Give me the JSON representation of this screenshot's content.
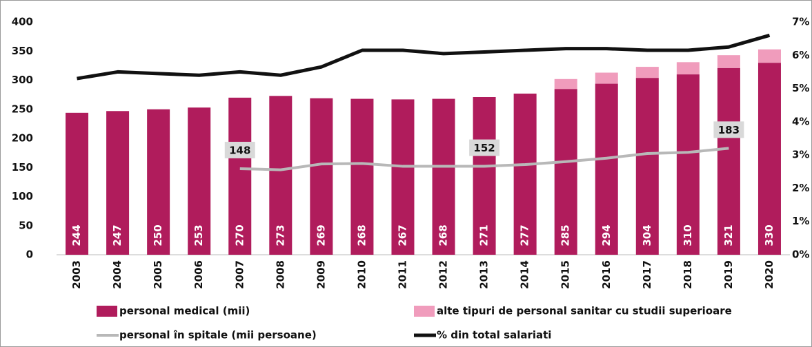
{
  "chart_data": {
    "type": "bar",
    "categories": [
      "2003",
      "2004",
      "2005",
      "2006",
      "2007",
      "2008",
      "2009",
      "2010",
      "2011",
      "2012",
      "2013",
      "2014",
      "2015",
      "2016",
      "2017",
      "2018",
      "2019",
      "2020"
    ],
    "series": [
      {
        "name": "personal medical (mii)",
        "color": "#b01c5c",
        "kind": "bar",
        "values": [
          244,
          247,
          250,
          253,
          270,
          273,
          269,
          268,
          267,
          268,
          271,
          277,
          285,
          294,
          304,
          310,
          321,
          330
        ]
      },
      {
        "name": "alte tipuri de personal sanitar cu studii superioare",
        "color": "#f09cbc",
        "kind": "bar",
        "values": [
          null,
          null,
          null,
          null,
          null,
          null,
          null,
          null,
          null,
          null,
          null,
          null,
          17,
          19,
          19,
          21,
          22,
          23
        ]
      },
      {
        "name": "personal în spitale (mii persoane)",
        "color": "#b8b8b8",
        "kind": "line",
        "values": [
          null,
          null,
          null,
          null,
          148,
          146,
          156,
          157,
          152,
          152,
          152,
          155,
          160,
          166,
          174,
          176,
          183,
          null
        ],
        "value_labels": [
          null,
          null,
          null,
          null,
          "148",
          null,
          null,
          null,
          null,
          null,
          "152",
          null,
          null,
          null,
          null,
          null,
          "183",
          null
        ]
      },
      {
        "name": "% din total salariati",
        "color": "#111111",
        "kind": "line",
        "axis": "y2",
        "values": [
          5.3,
          5.5,
          5.45,
          5.4,
          5.5,
          5.4,
          5.65,
          6.15,
          6.15,
          6.05,
          6.1,
          6.15,
          6.2,
          6.2,
          6.15,
          6.15,
          6.25,
          6.6
        ]
      }
    ],
    "ylim": [
      0,
      400
    ],
    "yticks": [
      0,
      50,
      100,
      150,
      200,
      250,
      300,
      350,
      400
    ],
    "y2lim": [
      0,
      7
    ],
    "y2ticks": [
      {
        "value": 0,
        "label": "0%"
      },
      {
        "value": 1,
        "label": "1%"
      },
      {
        "value": 2,
        "label": "2%"
      },
      {
        "value": 3,
        "label": "3%"
      },
      {
        "value": 4,
        "label": "4%"
      },
      {
        "value": 5,
        "label": "5%"
      },
      {
        "value": 6,
        "label": "6%"
      },
      {
        "value": 7,
        "label": "7%"
      }
    ],
    "legend": "bottom"
  }
}
